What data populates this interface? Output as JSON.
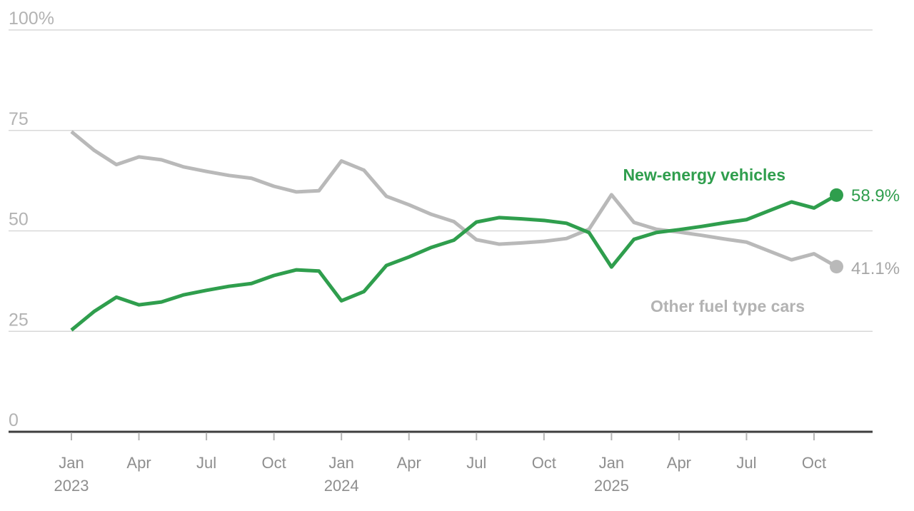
{
  "chart_data": {
    "type": "line",
    "title": "",
    "subtitle": "",
    "grid": true,
    "legend_position": "inline-labels",
    "categories": [
      "Jan 2023",
      "Feb 2023",
      "Mar 2023",
      "Apr 2023",
      "May 2023",
      "Jun 2023",
      "Jul 2023",
      "Aug 2023",
      "Sep 2023",
      "Oct 2023",
      "Nov 2023",
      "Dec 2023",
      "Jan 2024",
      "Feb 2024",
      "Mar 2024",
      "Apr 2024",
      "May 2024",
      "Jun 2024",
      "Jul 2024",
      "Aug 2024",
      "Sep 2024",
      "Oct 2024",
      "Nov 2024",
      "Dec 2024",
      "Jan 2025",
      "Feb 2025",
      "Mar 2025",
      "Apr 2025",
      "May 2025",
      "Jun 2025",
      "Jul 2025",
      "Aug 2025",
      "Sep 2025",
      "Oct 2025",
      "Nov 2025"
    ],
    "y_axis": {
      "range": [
        0,
        100
      ],
      "unit": "%",
      "ticks": [
        {
          "value": 0,
          "label": "0"
        },
        {
          "value": 25,
          "label": "25"
        },
        {
          "value": 50,
          "label": "50"
        },
        {
          "value": 75,
          "label": "75"
        },
        {
          "value": 100,
          "label": "100%"
        }
      ]
    },
    "x_axis": {
      "ticks": [
        {
          "index": 0,
          "label": "Jan",
          "year": "2023"
        },
        {
          "index": 3,
          "label": "Apr",
          "year": ""
        },
        {
          "index": 6,
          "label": "Jul",
          "year": ""
        },
        {
          "index": 9,
          "label": "Oct",
          "year": ""
        },
        {
          "index": 12,
          "label": "Jan",
          "year": "2024"
        },
        {
          "index": 15,
          "label": "Apr",
          "year": ""
        },
        {
          "index": 18,
          "label": "Jul",
          "year": ""
        },
        {
          "index": 21,
          "label": "Oct",
          "year": ""
        },
        {
          "index": 24,
          "label": "Jan",
          "year": "2025"
        },
        {
          "index": 27,
          "label": "Apr",
          "year": ""
        },
        {
          "index": 30,
          "label": "Jul",
          "year": ""
        },
        {
          "index": 33,
          "label": "Oct",
          "year": ""
        }
      ]
    },
    "series": [
      {
        "name": "New-energy vehicles",
        "color": "#2f9e4d",
        "end_label": "58.9%",
        "values": [
          25.3,
          29.9,
          33.5,
          31.6,
          32.3,
          34.1,
          35.2,
          36.2,
          36.9,
          38.9,
          40.3,
          40.0,
          32.6,
          34.9,
          41.4,
          43.5,
          45.9,
          47.7,
          52.2,
          53.3,
          53.0,
          52.6,
          51.9,
          49.6,
          41.0,
          47.9,
          49.6,
          50.3,
          51.1,
          52.0,
          52.8,
          55.0,
          57.2,
          55.7,
          58.9
        ]
      },
      {
        "name": "Other fuel type cars",
        "color": "#b9b9b9",
        "end_label": "41.1%",
        "values": [
          74.7,
          70.1,
          66.5,
          68.4,
          67.7,
          65.9,
          64.8,
          63.8,
          63.1,
          61.1,
          59.7,
          60.0,
          67.4,
          65.1,
          58.6,
          56.5,
          54.1,
          52.3,
          47.8,
          46.7,
          47.0,
          47.4,
          48.1,
          50.4,
          59.0,
          52.1,
          50.4,
          49.7,
          48.9,
          48.0,
          47.2,
          45.0,
          42.8,
          44.3,
          41.1
        ]
      }
    ],
    "colors": {
      "nev_line": "#2f9e4d",
      "other_line": "#b9b9b9",
      "nev_value_label": "#2f9e4d",
      "other_value_label": "#a6a6a6",
      "other_series_label": "#b3b3b3",
      "grid_line": "#d8d8d8",
      "axis_line": "#3d3d3d",
      "y_tick_text": "#b3b3b3",
      "x_tick_text": "#8e8e8e"
    }
  }
}
